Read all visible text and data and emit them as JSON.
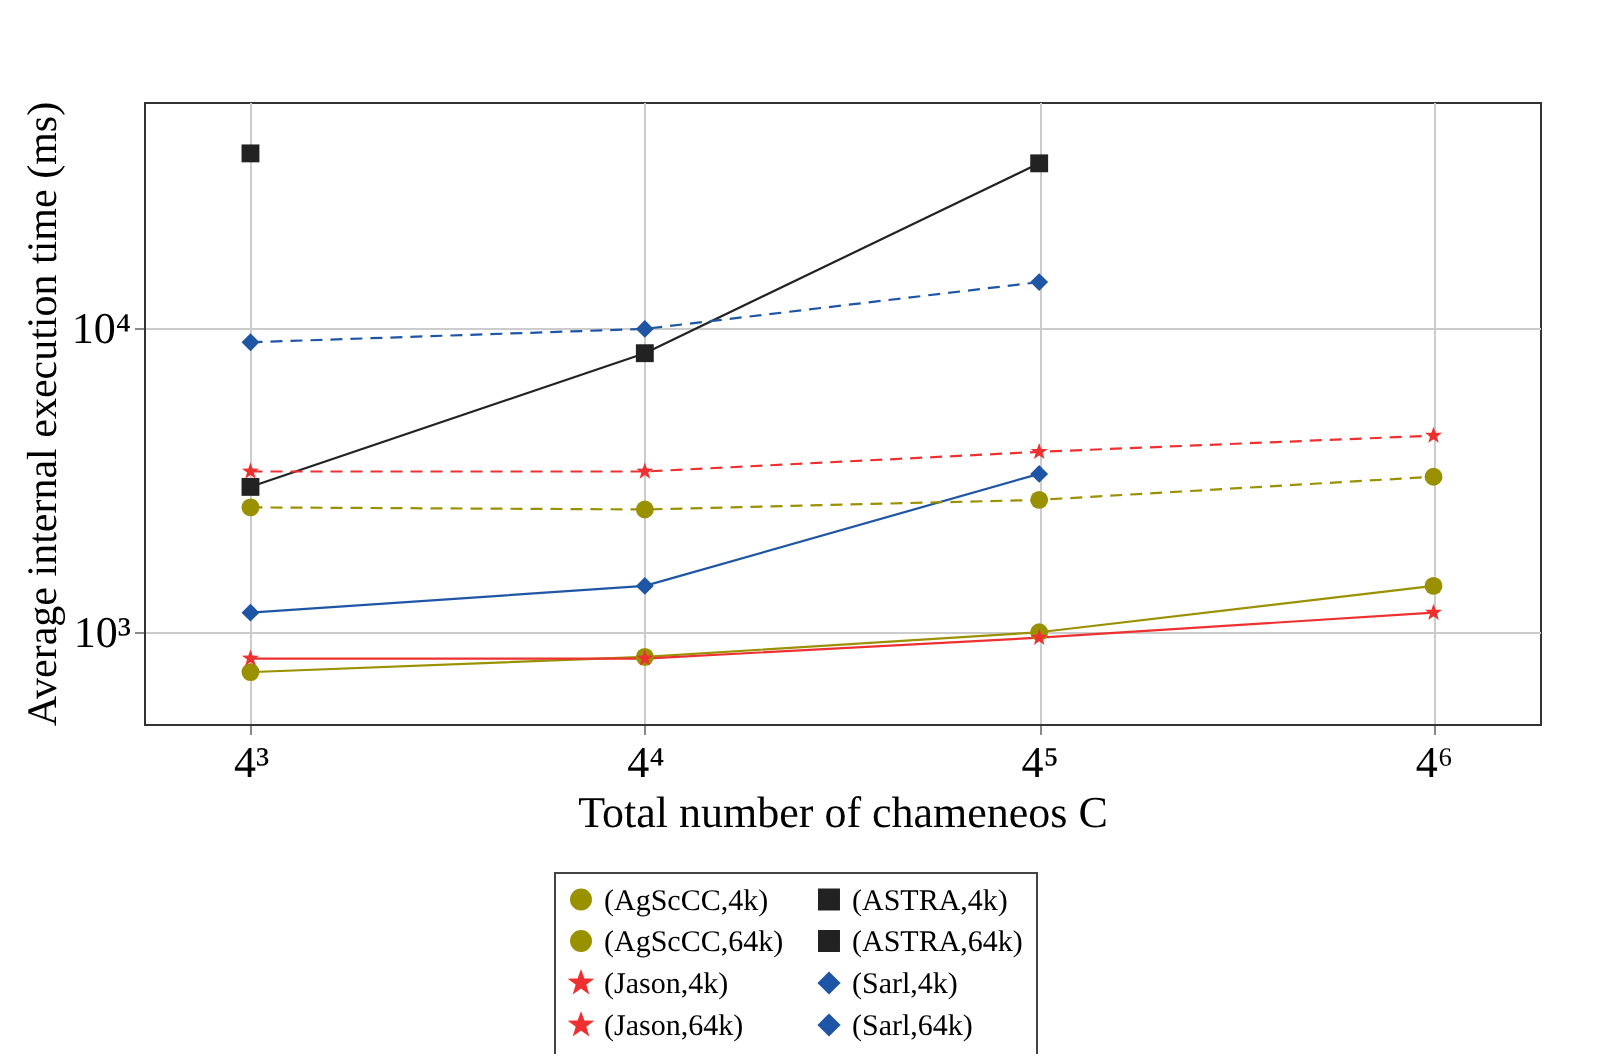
{
  "chart_data": {
    "type": "line",
    "xlabel": "Total number of chameneos C",
    "ylabel": "Average internal execution time (ms)",
    "categories": [
      "4³",
      "4⁴",
      "4⁵",
      "4⁶"
    ],
    "ylim": [
      500,
      55000
    ],
    "yticks": [
      {
        "value": 1000,
        "label": "10³"
      },
      {
        "value": 10000,
        "label": "10⁴"
      }
    ],
    "log": true,
    "grid": true,
    "legend": "bottom",
    "series": [
      {
        "name": "(AgScCC,4k)",
        "color": "#9a9100",
        "marker": "circle",
        "line_style": "solid",
        "values": [
          740,
          830,
          1000,
          1420
        ]
      },
      {
        "name": "(ASTRA,4k)",
        "color": "#222222",
        "marker": "square",
        "line_style": "solid",
        "values": [
          3000,
          8240,
          34600,
          null
        ]
      },
      {
        "name": "(AgScCC,64k)",
        "color": "#9a9100",
        "marker": "circle",
        "line_style": "dashed",
        "values": [
          2570,
          2530,
          2720,
          3240
        ]
      },
      {
        "name": "(ASTRA,64k)",
        "color": "#222222",
        "marker": "square",
        "line_style": "dashed",
        "values": [
          37300,
          null,
          null,
          null
        ]
      },
      {
        "name": "(Jason,4k)",
        "color": "#ee3030",
        "marker": "star",
        "line_style": "solid",
        "values": [
          820,
          820,
          960,
          1160
        ]
      },
      {
        "name": "(Sarl,4k)",
        "color": "#1f55a5",
        "marker": "diamond",
        "line_style": "solid",
        "values": [
          1160,
          1420,
          3310,
          null
        ]
      },
      {
        "name": "(Jason,64k)",
        "color": "#ee3030",
        "marker": "star",
        "line_style": "dashed",
        "values": [
          3370,
          3370,
          3910,
          4420
        ]
      },
      {
        "name": "(Sarl,64k)",
        "color": "#1f55a5",
        "marker": "diamond",
        "line_style": "dashed",
        "values": [
          8950,
          9900,
          14100,
          null
        ]
      }
    ]
  }
}
